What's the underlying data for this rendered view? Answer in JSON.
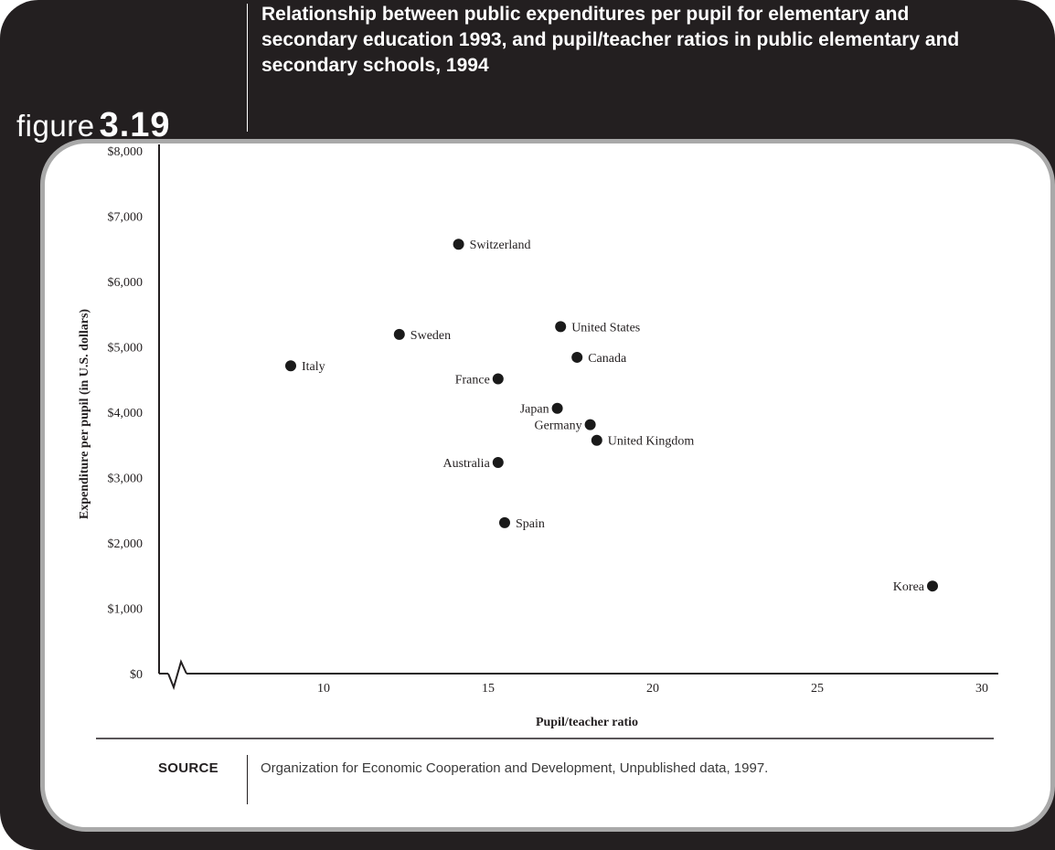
{
  "figure": {
    "word": "figure",
    "number": "3.19",
    "title": "Relationship between public expenditures per pupil for elementary and secondary education 1993, and pupil/teacher ratios in public elementary and secondary schools, 1994"
  },
  "source": {
    "label": "SOURCE",
    "text": "Organization for Economic Cooperation and Development, Unpublished data, 1997."
  },
  "chart_data": {
    "type": "scatter",
    "title": "Relationship between public expenditures per pupil for elementary and secondary education 1993, and pupil/teacher ratios in public elementary and secondary schools, 1994",
    "xlabel": "Pupil/teacher ratio",
    "ylabel": "Expenditure per pupil (in U.S. dollars)",
    "xlim": [
      5,
      30
    ],
    "ylim": [
      0,
      8000
    ],
    "x_ticks": [
      10,
      15,
      20,
      25,
      30
    ],
    "x_tick_labels": [
      "10",
      "15",
      "20",
      "25",
      "30"
    ],
    "y_ticks": [
      0,
      1000,
      2000,
      3000,
      4000,
      5000,
      6000,
      7000,
      8000
    ],
    "y_tick_labels": [
      "$0",
      "$1,000",
      "$2,000",
      "$3,000",
      "$4,000",
      "$5,000",
      "$6,000",
      "$7,000",
      "$8,000"
    ],
    "axis_break": "x",
    "grid": false,
    "legend": "none",
    "marker_color": "#1a1a1a",
    "points": [
      {
        "label": "Switzerland",
        "x": 14.1,
        "y": 6570,
        "label_side": "right"
      },
      {
        "label": "Sweden",
        "x": 12.3,
        "y": 5190,
        "label_side": "right"
      },
      {
        "label": "United States",
        "x": 17.2,
        "y": 5310,
        "label_side": "right"
      },
      {
        "label": "Canada",
        "x": 17.7,
        "y": 4840,
        "label_side": "right"
      },
      {
        "label": "Italy",
        "x": 9.0,
        "y": 4710,
        "label_side": "right"
      },
      {
        "label": "France",
        "x": 15.3,
        "y": 4510,
        "label_side": "left"
      },
      {
        "label": "Japan",
        "x": 17.1,
        "y": 4060,
        "label_side": "left"
      },
      {
        "label": "Germany",
        "x": 18.1,
        "y": 3810,
        "label_side": "left"
      },
      {
        "label": "United Kingdom",
        "x": 18.3,
        "y": 3570,
        "label_side": "right"
      },
      {
        "label": "Australia",
        "x": 15.3,
        "y": 3230,
        "label_side": "left"
      },
      {
        "label": "Spain",
        "x": 15.5,
        "y": 2310,
        "label_side": "right"
      },
      {
        "label": "Korea",
        "x": 28.5,
        "y": 1340,
        "label_side": "left"
      }
    ]
  }
}
